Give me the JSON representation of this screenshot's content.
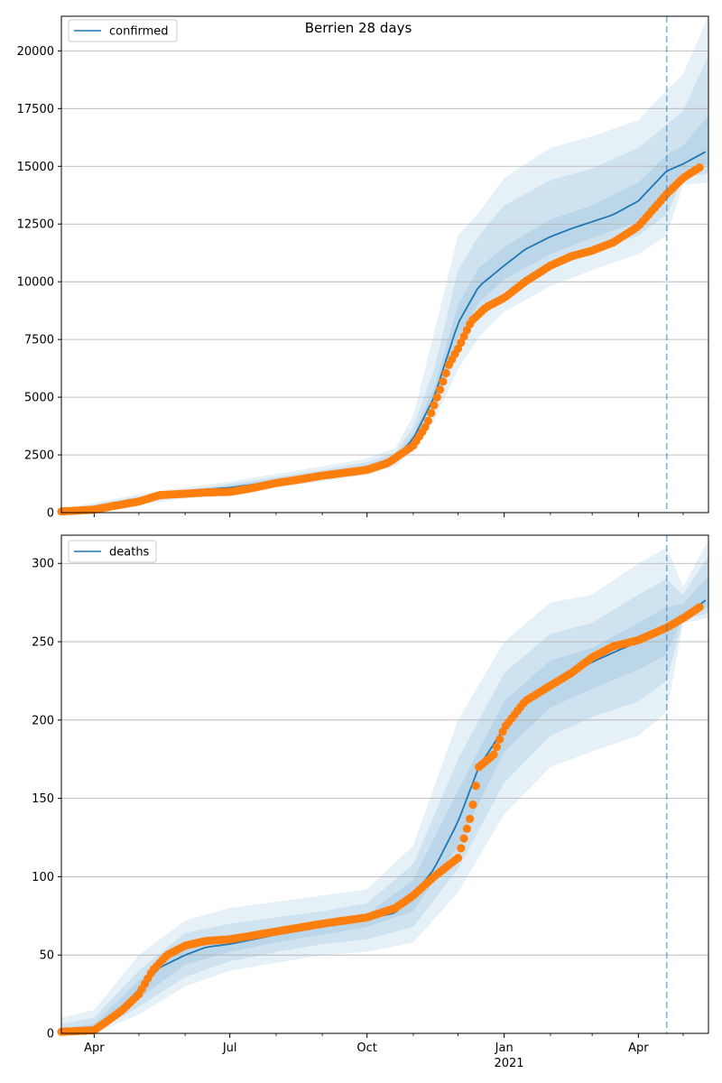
{
  "figure": {
    "title": "Berrien 28 days",
    "x_tick_labels": [
      "Apr",
      "Jul",
      "Oct",
      "Jan",
      "Apr"
    ],
    "x_year_label": "2021",
    "forecast_marker_date": "2021-04-20"
  },
  "colors": {
    "model_line": "#1f77b4",
    "observed_points": "#ff7f0e",
    "bands": "#1f77b4",
    "grid": "#b0b0b0",
    "forecast_line": "#1f77b4"
  },
  "chart_data": [
    {
      "type": "line",
      "panel": "top",
      "legend": "confirmed",
      "legend_position": "upper left",
      "grid": true,
      "xlim": [
        "2020-03-10",
        "2021-05-18"
      ],
      "ylim": [
        0,
        21500
      ],
      "y_ticks": [
        0,
        2500,
        5000,
        7500,
        10000,
        12500,
        15000,
        17500,
        20000
      ],
      "series": [
        {
          "name": "confirmed",
          "style": "line",
          "x": [
            "2020-03-10",
            "2020-04-01",
            "2020-05-01",
            "2020-06-01",
            "2020-07-01",
            "2020-08-01",
            "2020-09-01",
            "2020-10-01",
            "2020-10-20",
            "2020-11-01",
            "2020-11-15",
            "2020-12-01",
            "2020-12-15",
            "2021-01-01",
            "2021-01-15",
            "2021-02-01",
            "2021-02-15",
            "2021-03-01",
            "2021-03-15",
            "2021-04-01",
            "2021-04-20",
            "2021-05-01",
            "2021-05-18"
          ],
          "y": [
            50,
            120,
            550,
            950,
            1080,
            1350,
            1650,
            1950,
            2350,
            3200,
            5000,
            8200,
            9800,
            10700,
            11400,
            11950,
            12300,
            12600,
            12900,
            13500,
            14800,
            15100,
            15700
          ]
        },
        {
          "name": "observed",
          "style": "points",
          "x": [
            "2020-03-10",
            "2020-04-01",
            "2020-04-15",
            "2020-05-01",
            "2020-05-15",
            "2020-06-01",
            "2020-06-15",
            "2020-07-01",
            "2020-07-15",
            "2020-08-01",
            "2020-08-15",
            "2020-09-01",
            "2020-09-15",
            "2020-10-01",
            "2020-10-15",
            "2020-11-01",
            "2020-11-10",
            "2020-11-20",
            "2020-11-25",
            "2020-12-01",
            "2020-12-10",
            "2020-12-20",
            "2021-01-01",
            "2021-01-15",
            "2021-02-01",
            "2021-02-15",
            "2021-03-01",
            "2021-03-15",
            "2021-04-01",
            "2021-04-20",
            "2021-05-01",
            "2021-05-12"
          ],
          "y": [
            50,
            130,
            300,
            480,
            760,
            820,
            870,
            900,
            1050,
            1280,
            1420,
            1600,
            1720,
            1850,
            2150,
            2900,
            3800,
            5500,
            6400,
            7100,
            8300,
            8900,
            9300,
            10000,
            10700,
            11100,
            11350,
            11700,
            12400,
            13800,
            14500,
            14950
          ]
        }
      ],
      "bands": [
        {
          "level": "outer",
          "x": [
            "2020-03-10",
            "2020-05-01",
            "2020-07-01",
            "2020-09-01",
            "2020-10-01",
            "2020-10-20",
            "2020-11-01",
            "2020-11-15",
            "2020-12-01",
            "2020-12-15",
            "2021-01-01",
            "2021-02-01",
            "2021-03-01",
            "2021-04-01",
            "2021-04-20",
            "2021-05-01",
            "2021-05-18"
          ],
          "lower": [
            0,
            350,
            850,
            1350,
            1650,
            2000,
            2700,
            4000,
            6200,
            7600,
            8700,
            9800,
            10500,
            11200,
            12000,
            14200,
            14300
          ],
          "upper": [
            150,
            800,
            1350,
            2000,
            2350,
            2800,
            4200,
            7800,
            12000,
            13000,
            14500,
            15800,
            16300,
            17000,
            18300,
            19000,
            21500
          ]
        },
        {
          "level": "middle",
          "x": [
            "2020-03-10",
            "2020-05-01",
            "2020-07-01",
            "2020-09-01",
            "2020-10-01",
            "2020-10-20",
            "2020-11-01",
            "2020-11-15",
            "2020-12-01",
            "2020-12-15",
            "2021-01-01",
            "2021-02-01",
            "2021-03-01",
            "2021-04-01",
            "2021-04-20",
            "2021-05-01",
            "2021-05-18"
          ],
          "lower": [
            20,
            430,
            930,
            1450,
            1760,
            2120,
            2900,
            4400,
            7000,
            8500,
            9600,
            10500,
            11300,
            12000,
            12900,
            14500,
            14700
          ],
          "upper": [
            100,
            700,
            1240,
            1850,
            2180,
            2600,
            3700,
            6200,
            10500,
            12000,
            13300,
            14400,
            14900,
            15800,
            16800,
            17400,
            19800
          ]
        },
        {
          "level": "inner",
          "x": [
            "2020-03-10",
            "2020-05-01",
            "2020-07-01",
            "2020-09-01",
            "2020-10-01",
            "2020-10-20",
            "2020-11-01",
            "2020-11-15",
            "2020-12-01",
            "2020-12-15",
            "2021-01-01",
            "2021-02-01",
            "2021-03-01",
            "2021-04-01",
            "2021-04-20",
            "2021-05-01",
            "2021-05-18"
          ],
          "lower": [
            35,
            480,
            990,
            1530,
            1850,
            2220,
            3000,
            4700,
            7600,
            9100,
            10100,
            11200,
            11900,
            12600,
            13800,
            14800,
            15100
          ],
          "upper": [
            75,
            620,
            1160,
            1760,
            2060,
            2480,
            3400,
            5400,
            9000,
            10600,
            11500,
            12700,
            13300,
            14300,
            15500,
            15900,
            17200
          ]
        }
      ]
    },
    {
      "type": "line",
      "panel": "bottom",
      "legend": "deaths",
      "legend_position": "upper left",
      "grid": true,
      "xlim": [
        "2020-03-10",
        "2021-05-18"
      ],
      "ylim": [
        0,
        318
      ],
      "y_ticks": [
        0,
        50,
        100,
        150,
        200,
        250,
        300
      ],
      "series": [
        {
          "name": "deaths",
          "style": "line",
          "x": [
            "2020-03-10",
            "2020-04-01",
            "2020-04-15",
            "2020-05-01",
            "2020-05-15",
            "2020-06-01",
            "2020-06-15",
            "2020-07-01",
            "2020-08-01",
            "2020-09-01",
            "2020-10-01",
            "2020-10-20",
            "2020-11-01",
            "2020-11-15",
            "2020-12-01",
            "2020-12-15",
            "2021-01-01",
            "2021-01-15",
            "2021-02-01",
            "2021-02-15",
            "2021-03-01",
            "2021-03-15",
            "2021-04-01",
            "2021-04-20",
            "2021-05-01",
            "2021-05-18"
          ],
          "y": [
            0,
            3,
            12,
            28,
            42,
            50,
            55,
            57,
            63,
            68,
            73,
            77,
            88,
            105,
            135,
            170,
            195,
            210,
            222,
            230,
            237,
            243,
            250,
            257,
            265,
            278
          ]
        },
        {
          "name": "observed",
          "style": "points",
          "x": [
            "2020-03-10",
            "2020-04-01",
            "2020-04-10",
            "2020-04-20",
            "2020-05-01",
            "2020-05-10",
            "2020-05-20",
            "2020-06-01",
            "2020-06-15",
            "2020-07-01",
            "2020-08-01",
            "2020-09-01",
            "2020-10-01",
            "2020-10-20",
            "2020-11-01",
            "2020-11-15",
            "2020-12-01",
            "2020-12-10",
            "2020-12-15",
            "2020-12-25",
            "2021-01-01",
            "2021-01-15",
            "2021-02-01",
            "2021-02-15",
            "2021-03-01",
            "2021-03-15",
            "2021-04-01",
            "2021-04-20",
            "2021-05-01",
            "2021-05-12"
          ],
          "y": [
            1,
            2,
            8,
            15,
            25,
            40,
            50,
            56,
            59,
            60,
            65,
            70,
            74,
            80,
            88,
            100,
            112,
            140,
            170,
            178,
            195,
            212,
            222,
            230,
            240,
            247,
            251,
            259,
            265,
            272
          ]
        }
      ],
      "bands": [
        {
          "level": "outer",
          "x": [
            "2020-03-10",
            "2020-04-01",
            "2020-05-01",
            "2020-06-01",
            "2020-07-01",
            "2020-08-01",
            "2020-09-01",
            "2020-10-01",
            "2020-11-01",
            "2020-12-01",
            "2021-01-01",
            "2021-02-01",
            "2021-03-01",
            "2021-04-01",
            "2021-04-20",
            "2021-05-01",
            "2021-05-18"
          ],
          "lower": [
            0,
            0,
            12,
            30,
            40,
            45,
            50,
            52,
            58,
            90,
            140,
            170,
            180,
            190,
            205,
            262,
            265
          ],
          "upper": [
            10,
            15,
            50,
            72,
            80,
            84,
            88,
            92,
            120,
            200,
            250,
            275,
            280,
            300,
            310,
            285,
            315
          ]
        },
        {
          "level": "middle",
          "x": [
            "2020-03-10",
            "2020-04-01",
            "2020-05-01",
            "2020-06-01",
            "2020-07-01",
            "2020-08-01",
            "2020-09-01",
            "2020-10-01",
            "2020-11-01",
            "2020-12-01",
            "2021-01-01",
            "2021-02-01",
            "2021-03-01",
            "2021-04-01",
            "2021-04-20",
            "2021-05-01",
            "2021-05-18"
          ],
          "lower": [
            0,
            0,
            17,
            36,
            46,
            52,
            57,
            60,
            68,
            105,
            160,
            190,
            202,
            212,
            225,
            264,
            268
          ],
          "upper": [
            6,
            10,
            40,
            64,
            70,
            74,
            78,
            83,
            108,
            175,
            230,
            255,
            262,
            280,
            290,
            280,
            305
          ]
        },
        {
          "level": "inner",
          "x": [
            "2020-03-10",
            "2020-04-01",
            "2020-05-01",
            "2020-06-01",
            "2020-07-01",
            "2020-08-01",
            "2020-09-01",
            "2020-10-01",
            "2020-11-01",
            "2020-12-01",
            "2021-01-01",
            "2021-02-01",
            "2021-03-01",
            "2021-04-01",
            "2021-04-20",
            "2021-05-01",
            "2021-05-18"
          ],
          "lower": [
            0,
            1,
            22,
            44,
            52,
            58,
            63,
            68,
            78,
            120,
            180,
            208,
            220,
            232,
            242,
            266,
            272
          ],
          "upper": [
            3,
            6,
            34,
            56,
            62,
            67,
            71,
            76,
            98,
            155,
            212,
            238,
            246,
            262,
            272,
            274,
            292
          ]
        }
      ]
    }
  ]
}
